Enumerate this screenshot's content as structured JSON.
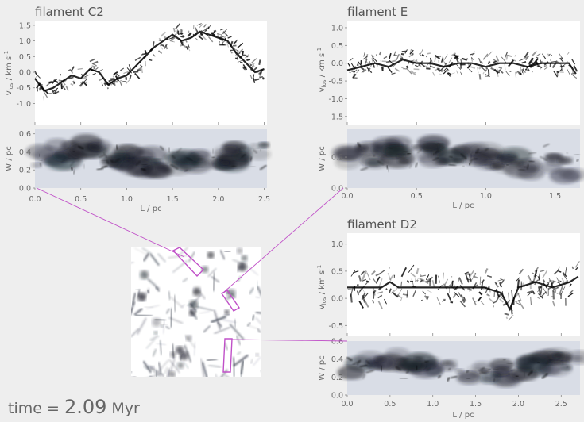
{
  "time": {
    "prefix": "time = ",
    "value": "2.09",
    "unit": "Myr"
  },
  "colors": {
    "background": "#eeeeee",
    "connector": "#c050c8",
    "ink": "#111111",
    "text": "#555555"
  },
  "chart_data": [
    {
      "id": "c2",
      "type": "heatmap",
      "title": "filament C2",
      "velocity_panel": {
        "ylabel": "v_los / km s^-1",
        "ylim": [
          -1.7,
          1.65
        ],
        "yticks": [
          "1.5",
          "1.0",
          "0.5",
          "0.0",
          "-0.5",
          "-1.0"
        ],
        "ytick_values": [
          1.5,
          1.0,
          0.5,
          0.0,
          -0.5,
          -1.0
        ],
        "trace_x": [
          0.0,
          0.1,
          0.2,
          0.3,
          0.4,
          0.5,
          0.6,
          0.7,
          0.8,
          0.9,
          1.0,
          1.1,
          1.2,
          1.3,
          1.4,
          1.5,
          1.6,
          1.7,
          1.8,
          1.9,
          2.0,
          2.1,
          2.2,
          2.3,
          2.4,
          2.5
        ],
        "trace_y": [
          -0.2,
          -0.6,
          -0.5,
          -0.3,
          -0.1,
          -0.2,
          0.1,
          0.0,
          -0.4,
          -0.2,
          -0.1,
          0.2,
          0.5,
          0.8,
          1.0,
          1.2,
          1.0,
          1.1,
          1.3,
          1.2,
          1.1,
          1.0,
          0.6,
          0.3,
          0.0,
          0.1
        ]
      },
      "width_panel": {
        "ylabel": "W / pc",
        "ylim": [
          0.0,
          0.65
        ],
        "yticks": [
          "0.6",
          "0.4",
          "0.2",
          "0.0"
        ],
        "ytick_values": [
          0.6,
          0.4,
          0.2,
          0.0
        ]
      },
      "x": {
        "label": "L / pc",
        "xlim": [
          0.0,
          2.53
        ],
        "ticks": [
          "0.0",
          "0.5",
          "1.0",
          "1.5",
          "2.0",
          "2.5"
        ],
        "tick_values": [
          0.0,
          0.5,
          1.0,
          1.5,
          2.0,
          2.5
        ]
      }
    },
    {
      "id": "e",
      "type": "heatmap",
      "title": "filament E",
      "velocity_panel": {
        "ylabel": "v_los / km s^-1",
        "ylim": [
          -1.75,
          1.2
        ],
        "yticks": [
          "1.0",
          "0.5",
          "0.0",
          "-0.5",
          "-1.0",
          "-1.5"
        ],
        "ytick_values": [
          1.0,
          0.5,
          0.0,
          -0.5,
          -1.0,
          -1.5
        ],
        "trace_x": [
          0.0,
          0.1,
          0.2,
          0.3,
          0.4,
          0.5,
          0.6,
          0.7,
          0.8,
          0.9,
          1.0,
          1.1,
          1.2,
          1.3,
          1.4,
          1.5,
          1.6,
          1.65
        ],
        "trace_y": [
          -0.2,
          -0.1,
          0.0,
          -0.1,
          0.1,
          0.0,
          0.0,
          -0.1,
          0.0,
          0.0,
          -0.1,
          0.0,
          0.0,
          -0.1,
          0.0,
          0.0,
          0.0,
          -0.3
        ]
      },
      "width_panel": {
        "ylabel": "W / pc",
        "ylim": [
          0.0,
          0.38
        ],
        "yticks": [
          "0.2",
          "0.0"
        ],
        "ytick_values": [
          0.2,
          0.0
        ]
      },
      "x": {
        "label": "L / pc",
        "xlim": [
          0.0,
          1.68
        ],
        "ticks": [
          "0.0",
          "0.5",
          "1.0",
          "1.5"
        ],
        "tick_values": [
          0.0,
          0.5,
          1.0,
          1.5
        ]
      }
    },
    {
      "id": "d2",
      "type": "heatmap",
      "title": "filament D2",
      "velocity_panel": {
        "ylabel": "v_los / km s^-1",
        "ylim": [
          -0.7,
          1.2
        ],
        "yticks": [
          "1.0",
          "0.5",
          "0.0",
          "-0.5"
        ],
        "ytick_values": [
          1.0,
          0.5,
          0.0,
          -0.5
        ],
        "trace_x": [
          0.0,
          0.2,
          0.4,
          0.5,
          0.6,
          0.8,
          1.0,
          1.2,
          1.4,
          1.6,
          1.8,
          1.9,
          2.0,
          2.2,
          2.4,
          2.6,
          2.7
        ],
        "trace_y": [
          0.2,
          0.2,
          0.2,
          0.3,
          0.2,
          0.2,
          0.2,
          0.2,
          0.2,
          0.2,
          0.1,
          -0.2,
          0.2,
          0.3,
          0.2,
          0.3,
          0.4
        ]
      },
      "width_panel": {
        "ylabel": "W / pc",
        "ylim": [
          0.0,
          0.6
        ],
        "yticks": [
          "0.6",
          "0.4",
          "0.2",
          "0.0"
        ],
        "ytick_values": [
          0.6,
          0.4,
          0.2,
          0.0
        ]
      },
      "x": {
        "label": "L / pc",
        "xlim": [
          0.0,
          2.72
        ],
        "ticks": [
          "0.0",
          "0.5",
          "1.0",
          "1.5",
          "2.0",
          "2.5"
        ],
        "tick_values": [
          0.0,
          0.5,
          1.0,
          1.5,
          2.0,
          2.5
        ]
      }
    }
  ]
}
